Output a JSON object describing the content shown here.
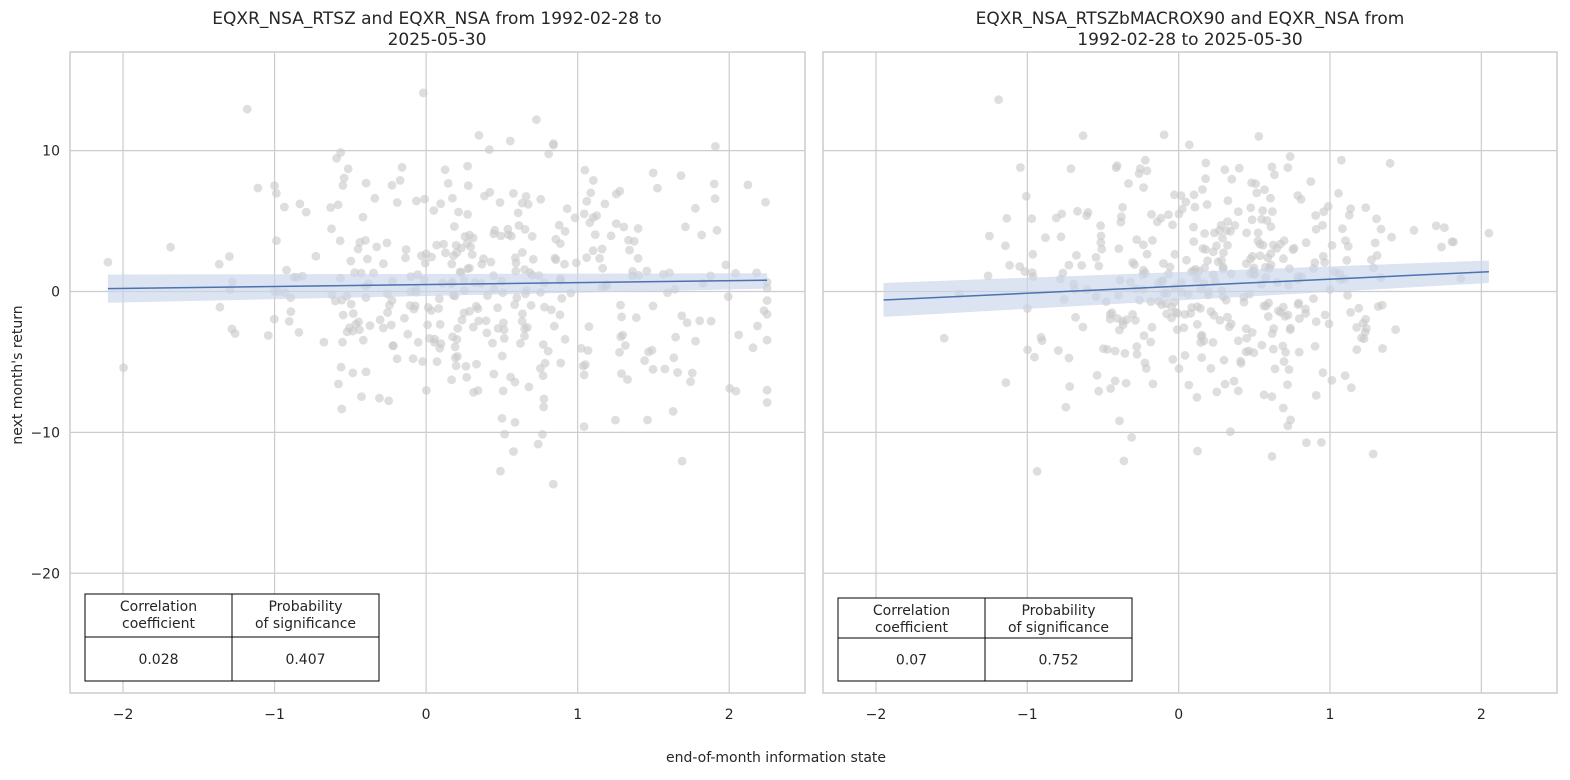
{
  "figure": {
    "xlabel": "end-of-month information state",
    "ylabel": "next month's return"
  },
  "colors": {
    "points": "#c8c8c8",
    "regression_line": "#4c72b0",
    "confidence_band": "#c9d5ea",
    "grid": "#cccccc",
    "frame": "#cccccc",
    "table_border": "#000000"
  },
  "chart_data": [
    {
      "type": "scatter",
      "title_lines": [
        "EQXR_NSA_RTSZ and EQXR_NSA from 1992-02-28 to",
        "2025-05-30"
      ],
      "xlim": [
        -2.35,
        2.5
      ],
      "ylim": [
        -28.5,
        17
      ],
      "xticks": [
        -2,
        -1,
        0,
        1,
        2
      ],
      "xtick_labels": [
        "−2",
        "−1",
        "0",
        "1",
        "2"
      ],
      "yticks": [
        -20,
        -10,
        0,
        10
      ],
      "ytick_labels": [
        "−20",
        "−10",
        "0",
        "10"
      ],
      "grid": true,
      "n_points": 399,
      "x_mean": 0.45,
      "x_sd": 0.85,
      "x_range": [
        -2.1,
        2.25
      ],
      "y_sd": 4.6,
      "regression": {
        "x": [
          -2.1,
          2.25
        ],
        "y": [
          0.2,
          0.8
        ]
      },
      "confidence_band": {
        "x": [
          -2.1,
          2.25
        ],
        "lower": [
          -0.8,
          0.2
        ],
        "upper": [
          1.2,
          1.3
        ]
      },
      "stats_table": {
        "headers": [
          [
            "Correlation",
            "coefficient"
          ],
          [
            "Probability",
            "of significance"
          ]
        ],
        "values": [
          "0.028",
          "0.407"
        ],
        "placement": "bottom-left"
      }
    },
    {
      "type": "scatter",
      "title_lines": [
        "EQXR_NSA_RTSZbMACROX90 and EQXR_NSA from",
        "1992-02-28 to 2025-05-30"
      ],
      "xlim": [
        -2.35,
        2.5
      ],
      "ylim": [
        -28.5,
        17
      ],
      "xticks": [
        -2,
        -1,
        0,
        1,
        2
      ],
      "xtick_labels": [
        "−2",
        "−1",
        "0",
        "1",
        "2"
      ],
      "yticks": [
        -20,
        -10,
        0,
        10
      ],
      "ytick_labels": [
        "",
        "",
        "",
        ""
      ],
      "grid": true,
      "n_points": 399,
      "x_mean": 0.25,
      "x_sd": 0.65,
      "x_range": [
        -1.95,
        2.05
      ],
      "y_sd": 4.6,
      "regression": {
        "x": [
          -1.95,
          2.05
        ],
        "y": [
          -0.6,
          1.4
        ]
      },
      "confidence_band": {
        "x": [
          -1.95,
          2.05
        ],
        "lower": [
          -1.8,
          0.6
        ],
        "upper": [
          0.6,
          2.2
        ]
      },
      "stats_table": {
        "headers": [
          [
            "Correlation",
            "coefficient"
          ],
          [
            "Probability",
            "of significance"
          ]
        ],
        "values": [
          "0.07",
          "0.752"
        ],
        "placement": "bottom-left"
      }
    }
  ]
}
